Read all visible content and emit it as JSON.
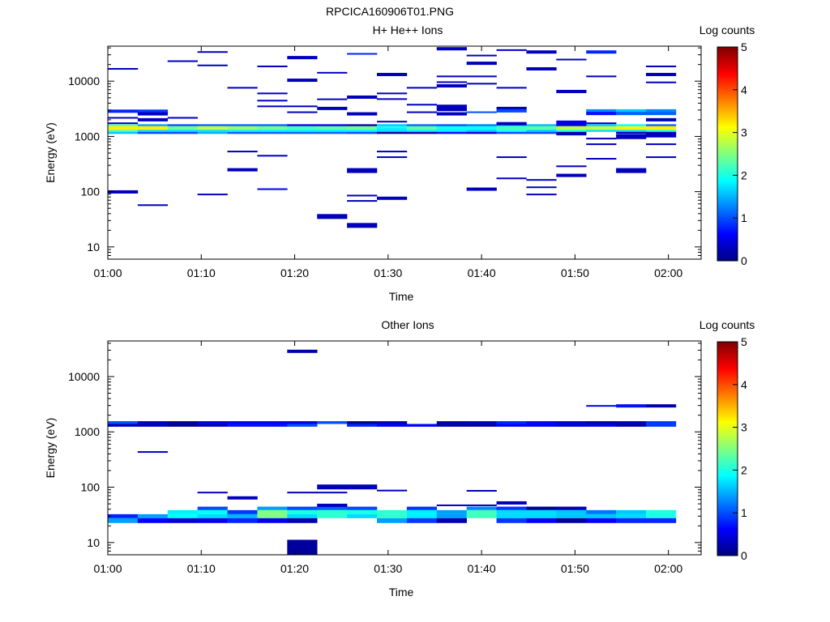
{
  "figure_title": "RPCICA160906T01.PNG",
  "chart_data": [
    {
      "type": "heatmap",
      "title": "H+ He++ Ions",
      "xlabel": "Time",
      "ylabel": "Energy (eV)",
      "yscale": "log",
      "ylim": [
        6,
        43000
      ],
      "xlim_minutes": [
        0,
        63.5
      ],
      "bin_minutes": 3.2,
      "n_columns": 19,
      "line_bin_ratio": 1.07,
      "xticks": [
        {
          "minute": 0,
          "label": "01:00"
        },
        {
          "minute": 10,
          "label": "01:10"
        },
        {
          "minute": 20,
          "label": "01:20"
        },
        {
          "minute": 30,
          "label": "01:30"
        },
        {
          "minute": 40,
          "label": "01:40"
        },
        {
          "minute": 50,
          "label": "01:50"
        },
        {
          "minute": 60,
          "label": "02:00"
        }
      ],
      "yticks": [
        {
          "value": 10,
          "label": "10"
        },
        {
          "value": 100,
          "label": "100"
        },
        {
          "value": 1000,
          "label": "1000"
        },
        {
          "value": 10000,
          "label": "10000"
        }
      ],
      "colorbar": {
        "label": "Log counts",
        "range": [
          0,
          5
        ],
        "colormap": "jet",
        "ticks": [
          {
            "value": 0,
            "label": "0"
          },
          {
            "value": 1,
            "label": "1"
          },
          {
            "value": 2,
            "label": "2"
          },
          {
            "value": 3,
            "label": "3"
          },
          {
            "value": 4,
            "label": "4"
          },
          {
            "value": 5,
            "label": "5"
          }
        ]
      },
      "bands": [
        {
          "edges_eV": [
            1660,
            1530,
            1420,
            1310,
            1210,
            1110
          ],
          "values": [
            [
              2.3,
              3.2,
              3.2,
              2.2,
              1.6
            ],
            [
              1.4,
              3.2,
              3.2,
              1.7,
              1.0
            ],
            [
              1.0,
              2.4,
              2.4,
              1.7,
              1.0
            ],
            [
              1.1,
              2.8,
              2.8,
              1.7,
              1.5
            ],
            [
              1.1,
              2.6,
              2.6,
              1.8,
              1.1
            ],
            [
              1.1,
              2.4,
              2.4,
              1.8,
              1.1
            ],
            [
              0.5,
              2.2,
              2.2,
              1.8,
              1.1
            ],
            [
              0.5,
              2.3,
              2.3,
              1.8,
              1.1
            ],
            [
              0.2,
              2.4,
              2.4,
              1.8,
              1.0
            ],
            [
              1.6,
              2.0,
              1.8,
              1.7,
              0.2
            ],
            [
              1.1,
              2.3,
              2.3,
              1.8,
              0.3
            ],
            [
              1.0,
              1.9,
              1.9,
              1.8,
              0.7
            ],
            [
              1.2,
              1.9,
              1.9,
              1.6,
              0.5
            ],
            [
              1.6,
              2.2,
              2.2,
              2.0,
              1.0
            ],
            [
              1.5,
              2.3,
              2.3,
              1.6,
              1.0
            ],
            [
              0.5,
              2.8,
              2.8,
              2.0,
              0.2
            ],
            [
              1.6,
              2.8,
              2.8,
              1.7,
              null
            ],
            [
              1.9,
              3.0,
              3.2,
              1.7,
              0.3
            ],
            [
              1.1,
              3.2,
              3.2,
              2.0,
              0.3
            ]
          ]
        }
      ],
      "lines": [
        [
          0,
          16700,
          0.3,
          1
        ],
        [
          0,
          2860,
          0.8,
          2
        ],
        [
          0,
          2170,
          0.3,
          1
        ],
        [
          0,
          1730,
          0.3,
          1
        ],
        [
          0,
          99,
          0.3,
          2
        ],
        [
          1,
          2860,
          0.9,
          2
        ],
        [
          1,
          2560,
          0.3,
          2
        ],
        [
          1,
          2000,
          0.3,
          2
        ],
        [
          1,
          57,
          0.3,
          1
        ],
        [
          2,
          23000,
          0.3,
          1
        ],
        [
          2,
          2170,
          0.3,
          1
        ],
        [
          3,
          33700,
          0.3,
          1
        ],
        [
          3,
          19300,
          0.3,
          1
        ],
        [
          3,
          89,
          0.3,
          1
        ],
        [
          4,
          7590,
          0.3,
          1
        ],
        [
          4,
          533,
          0.3,
          1
        ],
        [
          4,
          249,
          0.3,
          2
        ],
        [
          5,
          18500,
          0.3,
          1
        ],
        [
          5,
          6000,
          0.3,
          1
        ],
        [
          5,
          4440,
          0.3,
          1
        ],
        [
          5,
          3500,
          0.3,
          1
        ],
        [
          5,
          447,
          0.3,
          1
        ],
        [
          5,
          111,
          0.6,
          1
        ],
        [
          6,
          26700,
          0.3,
          2
        ],
        [
          6,
          10400,
          0.3,
          2
        ],
        [
          6,
          3500,
          0.3,
          1
        ],
        [
          6,
          2740,
          0.3,
          1
        ],
        [
          7,
          14200,
          0.3,
          1
        ],
        [
          7,
          4700,
          0.3,
          1
        ],
        [
          7,
          3210,
          0.3,
          2
        ],
        [
          7,
          35.5,
          0.3,
          3
        ],
        [
          8,
          31200,
          0.8,
          1
        ],
        [
          8,
          5140,
          0.3,
          2
        ],
        [
          8,
          2560,
          0.3,
          2
        ],
        [
          8,
          241,
          0.3,
          3
        ],
        [
          8,
          85,
          0.3,
          1
        ],
        [
          8,
          68,
          0.3,
          1
        ],
        [
          8,
          24.5,
          0.3,
          3
        ],
        [
          9,
          13200,
          0.3,
          2
        ],
        [
          9,
          6000,
          0.3,
          1
        ],
        [
          9,
          4740,
          0.3,
          1
        ],
        [
          9,
          1850,
          0.3,
          1
        ],
        [
          9,
          533,
          0.3,
          1
        ],
        [
          9,
          421,
          0.3,
          1
        ],
        [
          9,
          76,
          0.3,
          2
        ],
        [
          10,
          7590,
          0.3,
          1
        ],
        [
          10,
          3750,
          0.3,
          1
        ],
        [
          10,
          2740,
          0.3,
          1
        ],
        [
          11,
          38600,
          0.3,
          2
        ],
        [
          11,
          12200,
          0.3,
          1
        ],
        [
          11,
          9600,
          0.3,
          1
        ],
        [
          11,
          8220,
          0.3,
          2
        ],
        [
          11,
          3280,
          0.3,
          4
        ],
        [
          11,
          2560,
          0.3,
          2
        ],
        [
          12,
          29100,
          0.3,
          1
        ],
        [
          12,
          21100,
          0.3,
          2
        ],
        [
          12,
          12200,
          0.3,
          1
        ],
        [
          12,
          9000,
          0.3,
          1
        ],
        [
          12,
          2740,
          1.0,
          1
        ],
        [
          12,
          111,
          0.3,
          2
        ],
        [
          13,
          36500,
          0.3,
          1
        ],
        [
          13,
          7590,
          0.3,
          1
        ],
        [
          13,
          3210,
          0.3,
          2
        ],
        [
          13,
          2900,
          1.0,
          2
        ],
        [
          13,
          1700,
          0.3,
          2
        ],
        [
          13,
          421,
          0.3,
          1
        ],
        [
          13,
          174,
          0.3,
          1
        ],
        [
          14,
          33700,
          0.3,
          2
        ],
        [
          14,
          16700,
          0.3,
          2
        ],
        [
          14,
          163,
          0.3,
          1
        ],
        [
          14,
          120,
          0.3,
          1
        ],
        [
          14,
          89,
          0.3,
          1
        ],
        [
          15,
          24600,
          0.3,
          1
        ],
        [
          15,
          6500,
          0.3,
          2
        ],
        [
          15,
          1750,
          0.5,
          3
        ],
        [
          15,
          1080,
          0.3,
          1
        ],
        [
          15,
          288,
          0.3,
          1
        ],
        [
          15,
          197,
          0.3,
          2
        ],
        [
          16,
          33700,
          0.8,
          2
        ],
        [
          16,
          12200,
          0.3,
          1
        ],
        [
          16,
          2900,
          1.3,
          2
        ],
        [
          16,
          2600,
          0.7,
          2
        ],
        [
          16,
          1730,
          0.3,
          1
        ],
        [
          16,
          914,
          0.3,
          1
        ],
        [
          16,
          722,
          0.3,
          1
        ],
        [
          16,
          394,
          0.3,
          1
        ],
        [
          17,
          2900,
          1.6,
          2
        ],
        [
          17,
          2600,
          1.1,
          2
        ],
        [
          17,
          990,
          0.3,
          3
        ],
        [
          17,
          241,
          0.3,
          3
        ],
        [
          18,
          18500,
          0.3,
          1
        ],
        [
          18,
          13200,
          0.3,
          2
        ],
        [
          18,
          9500,
          0.3,
          1
        ],
        [
          18,
          2900,
          1.3,
          2
        ],
        [
          18,
          2600,
          1.1,
          2
        ],
        [
          18,
          2000,
          0.3,
          2
        ],
        [
          18,
          1060,
          0.3,
          3
        ],
        [
          18,
          722,
          0.3,
          1
        ],
        [
          18,
          421,
          0.3,
          1
        ]
      ],
      "blocks": []
    },
    {
      "type": "heatmap",
      "title": "Other Ions",
      "xlabel": "Time",
      "ylabel": "Energy (eV)",
      "yscale": "log",
      "ylim": [
        6,
        44000
      ],
      "xlim_minutes": [
        0,
        63.5
      ],
      "bin_minutes": 3.2,
      "n_columns": 19,
      "line_bin_ratio": 1.07,
      "xticks": [
        {
          "minute": 0,
          "label": "01:00"
        },
        {
          "minute": 10,
          "label": "01:10"
        },
        {
          "minute": 20,
          "label": "01:20"
        },
        {
          "minute": 30,
          "label": "01:30"
        },
        {
          "minute": 40,
          "label": "01:40"
        },
        {
          "minute": 50,
          "label": "01:50"
        },
        {
          "minute": 60,
          "label": "02:00"
        }
      ],
      "yticks": [
        {
          "value": 10,
          "label": "10"
        },
        {
          "value": 100,
          "label": "100"
        },
        {
          "value": 1000,
          "label": "1000"
        },
        {
          "value": 10000,
          "label": "10000"
        }
      ],
      "colorbar": {
        "label": "Log counts",
        "range": [
          0,
          5
        ],
        "colormap": "jet",
        "ticks": [
          {
            "value": 0,
            "label": "0"
          },
          {
            "value": 1,
            "label": "1"
          },
          {
            "value": 2,
            "label": "2"
          },
          {
            "value": 3,
            "label": "3"
          },
          {
            "value": 4,
            "label": "4"
          },
          {
            "value": 5,
            "label": "5"
          }
        ]
      },
      "bands": [
        {
          "edges_eV": [
            1560,
            1390,
            1240
          ],
          "values": [
            [
              1.0,
              0.3
            ],
            [
              0.3,
              0.3
            ],
            [
              0.1,
              0.1
            ],
            [
              0.5,
              0.3
            ],
            [
              0.6,
              0.7
            ],
            [
              0.6,
              0.7
            ],
            [
              0.5,
              1.0
            ],
            [
              1.0,
              null
            ],
            [
              0.1,
              0.8
            ],
            [
              0.3,
              0.6
            ],
            [
              null,
              0.6
            ],
            [
              0.2,
              0.2
            ],
            [
              0.3,
              0.2
            ],
            [
              0.8,
              0.6
            ],
            [
              0.6,
              0.6
            ],
            [
              0.4,
              0.4
            ],
            [
              0.2,
              0.5
            ],
            [
              0.3,
              0.2
            ],
            [
              0.9,
              0.9
            ]
          ]
        },
        {
          "edges_eV": [
            44.5,
            38.5,
            32.5,
            27.5,
            22.5
          ],
          "values": [
            [
              null,
              null,
              0.8,
              1.4
            ],
            [
              null,
              null,
              1.4,
              0.6
            ],
            [
              null,
              1.8,
              1.9,
              0.4
            ],
            [
              1.0,
              1.9,
              1.7,
              0.5
            ],
            [
              null,
              0.9,
              1.5,
              0.8
            ],
            [
              1.4,
              2.5,
              2.5,
              0.5
            ],
            [
              1.0,
              2.0,
              1.7,
              0.2
            ],
            [
              1.1,
              2.1,
              2.1,
              null
            ],
            [
              1.0,
              2.0,
              1.7,
              null
            ],
            [
              null,
              2.1,
              2.1,
              1.4
            ],
            [
              0.9,
              1.8,
              1.8,
              0.9
            ],
            [
              null,
              1.4,
              1.4,
              0.2
            ],
            [
              1.3,
              2.2,
              2.2,
              null
            ],
            [
              0.9,
              1.7,
              1.7,
              0.9
            ],
            [
              0.1,
              1.7,
              1.7,
              0.6
            ],
            [
              0.3,
              1.6,
              1.6,
              0.1
            ],
            [
              null,
              1.2,
              1.6,
              0.6
            ],
            [
              null,
              1.6,
              1.7,
              0.8
            ],
            [
              null,
              2.0,
              2.0,
              0.8
            ]
          ]
        }
      ],
      "lines": [
        [
          6,
          28600,
          0.2,
          2
        ],
        [
          6,
          80,
          0.2,
          1
        ],
        [
          1,
          433,
          0.3,
          1
        ],
        [
          3,
          80,
          0.3,
          1
        ],
        [
          4,
          64,
          0.3,
          2
        ],
        [
          7,
          101,
          0.3,
          3
        ],
        [
          7,
          80,
          0.3,
          1
        ],
        [
          7,
          47,
          0.3,
          2
        ],
        [
          8,
          101,
          0.3,
          3
        ],
        [
          9,
          87,
          0.3,
          1
        ],
        [
          12,
          86,
          0.3,
          1
        ],
        [
          11,
          47,
          0.3,
          1
        ],
        [
          12,
          47,
          0.3,
          1
        ],
        [
          13,
          52,
          0.3,
          2
        ],
        [
          16,
          2950,
          0.6,
          1
        ],
        [
          17,
          2950,
          0.7,
          2
        ],
        [
          18,
          2950,
          0.2,
          2
        ]
      ],
      "blocks": [
        [
          6,
          5.9,
          11.2,
          0.15
        ]
      ]
    }
  ]
}
